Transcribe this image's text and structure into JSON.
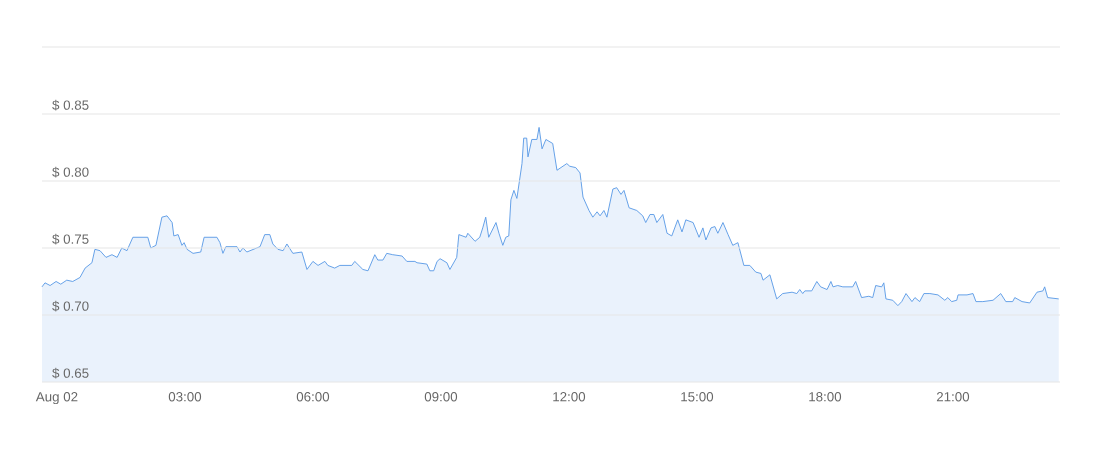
{
  "chart_data": {
    "type": "area",
    "color": "#5b9be6",
    "grid": "y",
    "xlim": [
      -0.35,
      23.51
    ],
    "ylim": [
      0.65,
      0.9
    ],
    "xticks": [
      {
        "value": 0,
        "label": "Aug 02"
      },
      {
        "value": 3,
        "label": "03:00"
      },
      {
        "value": 6,
        "label": "06:00"
      },
      {
        "value": 9,
        "label": "09:00"
      },
      {
        "value": 12,
        "label": "12:00"
      },
      {
        "value": 15,
        "label": "15:00"
      },
      {
        "value": 18,
        "label": "18:00"
      },
      {
        "value": 21,
        "label": "21:00"
      }
    ],
    "yticks": [
      {
        "value": 0.65,
        "label": "$ 0.65"
      },
      {
        "value": 0.7,
        "label": "$ 0.70"
      },
      {
        "value": 0.75,
        "label": "$ 0.75"
      },
      {
        "value": 0.8,
        "label": "$ 0.80"
      },
      {
        "value": 0.85,
        "label": "$ 0.85"
      },
      {
        "value": 0.9,
        "label": null
      }
    ],
    "x": [
      -0.35,
      -0.28,
      -0.16,
      -0.02,
      0.09,
      0.23,
      0.37,
      0.54,
      0.66,
      0.82,
      0.89,
      1.01,
      1.15,
      1.29,
      1.41,
      1.52,
      1.64,
      1.78,
      2.13,
      2.2,
      2.32,
      2.46,
      2.58,
      2.7,
      2.74,
      2.84,
      2.93,
      2.98,
      3.05,
      3.19,
      3.37,
      3.45,
      3.75,
      3.82,
      3.89,
      3.96,
      4.22,
      4.29,
      4.36,
      4.45,
      4.76,
      4.87,
      4.99,
      5.06,
      5.18,
      5.3,
      5.39,
      5.53,
      5.74,
      5.86,
      6.0,
      6.12,
      6.28,
      6.35,
      6.51,
      6.63,
      6.91,
      6.98,
      7.17,
      7.29,
      7.45,
      7.52,
      7.64,
      7.73,
      7.87,
      8.09,
      8.2,
      8.39,
      8.44,
      8.67,
      8.74,
      8.83,
      8.91,
      8.98,
      9.14,
      9.21,
      9.37,
      9.42,
      9.59,
      9.63,
      9.8,
      9.91,
      9.98,
      10.05,
      10.12,
      10.29,
      10.36,
      10.45,
      10.52,
      10.59,
      10.64,
      10.71,
      10.78,
      10.9,
      10.94,
      11.01,
      11.04,
      11.13,
      11.25,
      11.3,
      11.37,
      11.46,
      11.62,
      11.72,
      11.95,
      12.02,
      12.16,
      12.26,
      12.33,
      12.47,
      12.56,
      12.66,
      12.73,
      12.82,
      12.89,
      13.03,
      13.12,
      13.22,
      13.29,
      13.41,
      13.59,
      13.73,
      13.8,
      13.9,
      13.99,
      14.06,
      14.2,
      14.3,
      14.41,
      14.55,
      14.65,
      14.74,
      14.91,
      15.05,
      15.14,
      15.21,
      15.33,
      15.42,
      15.49,
      15.61,
      15.73,
      15.84,
      15.96,
      16.1,
      16.24,
      16.38,
      16.5,
      16.55,
      16.71,
      16.87,
      17.01,
      17.23,
      17.34,
      17.41,
      17.48,
      17.53,
      17.69,
      17.81,
      17.9,
      18.05,
      18.14,
      18.19,
      18.3,
      18.42,
      18.65,
      18.72,
      18.86,
      19.03,
      19.12,
      19.19,
      19.33,
      19.38,
      19.43,
      19.59,
      19.71,
      19.8,
      19.9,
      20.04,
      20.11,
      20.22,
      20.32,
      20.46,
      20.65,
      20.81,
      20.88,
      20.97,
      21.09,
      21.12,
      21.33,
      21.47,
      21.54,
      21.7,
      21.94,
      22.12,
      22.24,
      22.4,
      22.45,
      22.62,
      22.8,
      22.97,
      23.11,
      23.15,
      23.22,
      23.48
    ],
    "values": [
      0.721,
      0.724,
      0.722,
      0.725,
      0.723,
      0.726,
      0.725,
      0.728,
      0.735,
      0.739,
      0.749,
      0.748,
      0.743,
      0.745,
      0.743,
      0.75,
      0.748,
      0.758,
      0.758,
      0.75,
      0.752,
      0.773,
      0.774,
      0.769,
      0.759,
      0.76,
      0.752,
      0.754,
      0.749,
      0.746,
      0.747,
      0.758,
      0.758,
      0.754,
      0.746,
      0.751,
      0.751,
      0.747,
      0.75,
      0.747,
      0.751,
      0.76,
      0.76,
      0.753,
      0.749,
      0.748,
      0.753,
      0.746,
      0.747,
      0.734,
      0.74,
      0.737,
      0.74,
      0.737,
      0.735,
      0.737,
      0.737,
      0.74,
      0.734,
      0.733,
      0.745,
      0.741,
      0.741,
      0.746,
      0.745,
      0.744,
      0.74,
      0.74,
      0.739,
      0.738,
      0.733,
      0.733,
      0.74,
      0.742,
      0.739,
      0.734,
      0.743,
      0.76,
      0.758,
      0.761,
      0.755,
      0.758,
      0.765,
      0.773,
      0.758,
      0.769,
      0.761,
      0.752,
      0.758,
      0.759,
      0.786,
      0.793,
      0.787,
      0.813,
      0.832,
      0.832,
      0.818,
      0.831,
      0.831,
      0.84,
      0.824,
      0.831,
      0.828,
      0.808,
      0.813,
      0.811,
      0.81,
      0.806,
      0.788,
      0.778,
      0.773,
      0.777,
      0.774,
      0.778,
      0.773,
      0.794,
      0.795,
      0.79,
      0.793,
      0.78,
      0.778,
      0.774,
      0.769,
      0.775,
      0.775,
      0.769,
      0.775,
      0.761,
      0.759,
      0.771,
      0.762,
      0.771,
      0.769,
      0.758,
      0.765,
      0.756,
      0.765,
      0.766,
      0.761,
      0.769,
      0.76,
      0.752,
      0.754,
      0.737,
      0.737,
      0.732,
      0.731,
      0.726,
      0.73,
      0.712,
      0.716,
      0.717,
      0.716,
      0.719,
      0.716,
      0.718,
      0.718,
      0.725,
      0.721,
      0.719,
      0.725,
      0.721,
      0.722,
      0.721,
      0.721,
      0.725,
      0.713,
      0.714,
      0.713,
      0.722,
      0.721,
      0.724,
      0.712,
      0.711,
      0.707,
      0.71,
      0.716,
      0.71,
      0.713,
      0.71,
      0.716,
      0.716,
      0.715,
      0.711,
      0.713,
      0.71,
      0.711,
      0.715,
      0.715,
      0.716,
      0.71,
      0.71,
      0.711,
      0.716,
      0.71,
      0.71,
      0.713,
      0.71,
      0.709,
      0.717,
      0.718,
      0.721,
      0.713,
      0.712
    ]
  }
}
